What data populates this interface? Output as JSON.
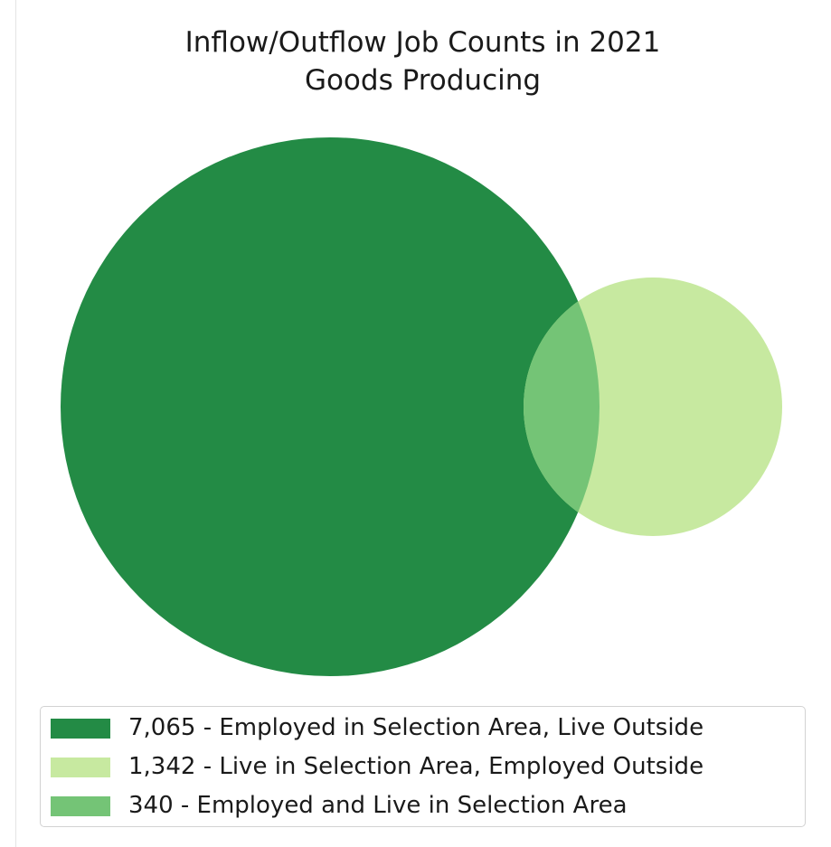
{
  "chart_data": {
    "type": "venn",
    "title": "Inflow/Outflow Job Counts in 2021",
    "subtitle": "Goods Producing",
    "legend_position": "bottom",
    "sets": [
      {
        "value": 7065,
        "label": "7,065 - Employed in Selection Area, Live Outside",
        "color": "#238b45"
      },
      {
        "value": 1342,
        "label": "1,342 - Live in Selection Area, Employed Outside",
        "color": "#c7e9a0"
      },
      {
        "value": 340,
        "label": "340 - Employed and Live in Selection Area",
        "color": "#74c476"
      }
    ]
  }
}
